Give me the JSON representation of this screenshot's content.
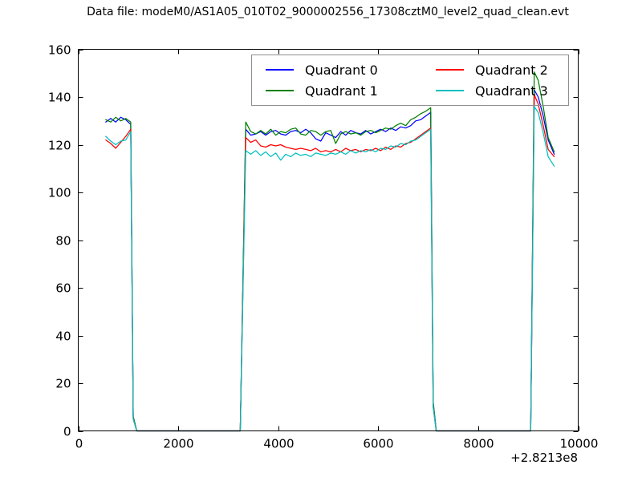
{
  "title": "Data file: modeM0/AS1A05_010T02_9000002556_17308cztM0_level2_quad_clean.evt",
  "chart_data": {
    "type": "line",
    "title": "Data file: modeM0/AS1A05_010T02_9000002556_17308cztM0_level2_quad_clean.evt",
    "xlabel": "",
    "ylabel": "",
    "xlim": [
      0,
      10000
    ],
    "ylim": [
      0,
      160
    ],
    "xticks": [
      0,
      2000,
      4000,
      6000,
      8000,
      10000
    ],
    "yticks": [
      0,
      20,
      40,
      60,
      80,
      100,
      120,
      140,
      160
    ],
    "x_offset_label": "+2.8213e8",
    "grid": false,
    "legend_position": "upper center, 2 columns",
    "frame_color": "#000000",
    "x": [
      550,
      650,
      750,
      850,
      950,
      1050,
      1100,
      1170,
      3240,
      3350,
      3450,
      3550,
      3650,
      3750,
      3850,
      3950,
      4050,
      4150,
      4250,
      4350,
      4450,
      4550,
      4650,
      4750,
      4850,
      4950,
      5050,
      5150,
      5250,
      5350,
      5450,
      5550,
      5650,
      5750,
      5850,
      5950,
      6050,
      6150,
      6250,
      6350,
      6450,
      6550,
      6650,
      6750,
      6850,
      6950,
      7050,
      7100,
      7160,
      9050,
      9120,
      9200,
      9300,
      9400,
      9520
    ],
    "series": [
      {
        "name": "Quadrant 0",
        "color": "#0000ff",
        "y": [
          129.5,
          131,
          129.5,
          131.5,
          130.5,
          128.5,
          6,
          0,
          0,
          126.5,
          124,
          124.5,
          125.5,
          124,
          125.5,
          126,
          124.5,
          124,
          125.5,
          126,
          125,
          126.5,
          125,
          122.5,
          121.5,
          125,
          124,
          123,
          125.5,
          124,
          126,
          125,
          124.5,
          126,
          124.5,
          125.5,
          126.5,
          125.5,
          127,
          126,
          127.5,
          127,
          128,
          130,
          130.5,
          132,
          133.5,
          12,
          0,
          0,
          143,
          140,
          132,
          122,
          116
        ]
      },
      {
        "name": "Quadrant 1",
        "color": "#008000",
        "y": [
          130.5,
          129.5,
          131.5,
          130,
          131,
          129.5,
          6,
          0,
          0,
          129.5,
          125.5,
          124.5,
          126,
          124.5,
          126.5,
          124,
          125.5,
          125,
          126.5,
          127,
          124.5,
          124,
          126,
          125.5,
          124,
          125.5,
          126,
          120.5,
          124.5,
          125.5,
          124.5,
          125,
          124,
          125.5,
          126,
          125,
          126,
          127,
          126.5,
          128,
          129,
          128,
          130.5,
          131.5,
          133,
          134,
          135.5,
          12,
          0,
          0,
          150.5,
          147,
          136,
          123,
          117
        ]
      },
      {
        "name": "Quadrant 2",
        "color": "#ff0000",
        "y": [
          122,
          120.5,
          118.5,
          121,
          123.5,
          126.5,
          5,
          0,
          0,
          123,
          121,
          122,
          119.5,
          119,
          120,
          119.5,
          120,
          119,
          118.5,
          118,
          118.5,
          118,
          117.5,
          118.5,
          117,
          117.5,
          117,
          118,
          117,
          118.5,
          117.5,
          118,
          117,
          118,
          117.5,
          118.5,
          117.5,
          119,
          118,
          119.5,
          119,
          120.5,
          121,
          122.5,
          124,
          125.5,
          127,
          10,
          0,
          0,
          141,
          137,
          128,
          118,
          115
        ]
      },
      {
        "name": "Quadrant 3",
        "color": "#00bfbf",
        "y": [
          123.5,
          121.5,
          120,
          121.5,
          122,
          125.5,
          5,
          0,
          0,
          117.5,
          116,
          117.5,
          115.5,
          117,
          115,
          116.5,
          113.5,
          116,
          115,
          116.5,
          115.5,
          116,
          115,
          116.5,
          116,
          115.5,
          116.5,
          116,
          117,
          116,
          117.5,
          116.5,
          117.5,
          117,
          118,
          117,
          118.5,
          118,
          119.5,
          119,
          120.5,
          120,
          121.5,
          122,
          123.5,
          125,
          126.5,
          10,
          0,
          0,
          136,
          133.5,
          125,
          115,
          111
        ]
      }
    ]
  }
}
